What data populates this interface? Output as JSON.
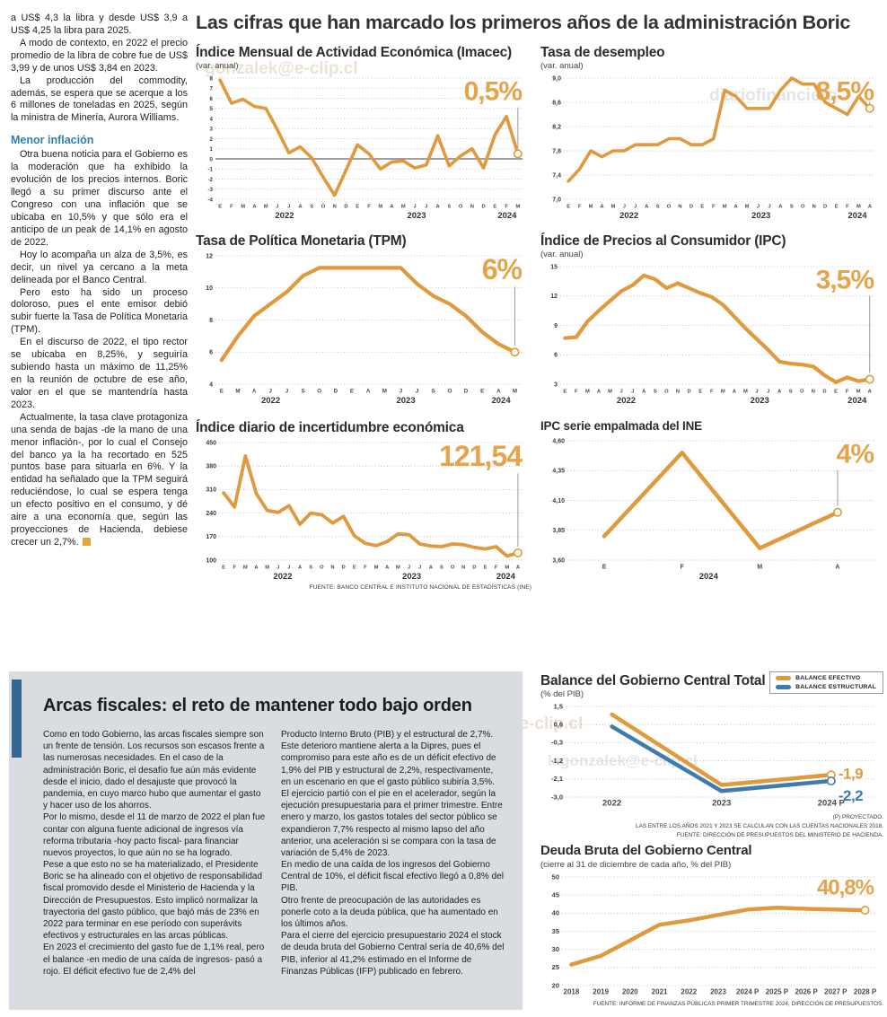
{
  "main_title": "Las cifras que han marcado los primeros años de la administración Boric",
  "watermarks": [
    "gonzalek@e-clip.cl",
    "diariofinanciero",
    "ero#@gonzalek@e-clip.cl",
    "lagonzalek@e-clip.cl"
  ],
  "left_column": {
    "paragraphs": [
      "a US$ 4,3 la libra y desde US$ 3,9 a US$ 4,25 la libra para 2025.",
      "A modo de contexto, en 2022 el precio promedio de la libra de cobre fue de US$ 3,99 y de unos US$ 3,84 en 2023.",
      "La producción del commodity, además, se espera que se acerque a los 6 millones de toneladas en 2025, según la ministra de Minería, Aurora Williams."
    ],
    "subhead": "Menor inflación",
    "paragraphs2": [
      "Otra buena noticia para el Gobierno es la moderación que ha exhibido la evolución de los precios internos. Boric llegó a su primer discurso ante el Congreso con una inflación que se ubicaba en 10,5% y que sólo era el anticipo de un peak de 14,1% en agosto de 2022.",
      "Hoy lo acompaña un alza de 3,5%, es decir, un nivel ya cercano a la meta delineada por el Banco Central.",
      "Pero esto ha sido un proceso doloroso, pues el ente emisor debió subir fuerte la Tasa de Política Monetaria (TPM).",
      "En el discurso de 2022, el tipo rector se ubicaba en 8,25%, y seguiría subiendo hasta un máximo de 11,25% en la reunión de octubre de ese año, valor en el que se mantendría hasta 2023.",
      "Actualmente, la tasa clave protagoniza una senda de bajas -de la mano de una menor inflación-, por lo cual el Consejo del banco ya la ha recortado en 525 puntos base para situarla en 6%. Y la entidad ha señalado que la TPM seguirá reduciéndose, lo cual se espera tenga un efecto positivo en el consumo, y dé aire a una economía que, según las proyecciones de Hacienda, debiese crecer un 2,7%."
    ]
  },
  "source_top": "FUENTE: BANCO CENTRAL E INSTITUTO NACIONAL DE ESTADÍSTICAS (INE)",
  "colors": {
    "orange": "#E0993C",
    "callout": "#E5A44C",
    "blue": "#3F7CAD",
    "panel": "#D9DCE0",
    "bar": "#336690"
  },
  "bottom": {
    "title": "Arcas fiscales: el reto de mantener todo bajo orden",
    "col1": [
      "Como en todo Gobierno, las arcas fiscales siempre son un frente de tensión. Los recursos son escasos frente a las numerosas necesidades. En el caso de la administración Boric, el desafío fue aún más evidente desde el inicio, dado el desajuste que provocó la pandemia, en cuyo marco hubo que aumentar el gasto y hacer uso de los ahorros.",
      "Por lo mismo, desde el 11 de marzo de 2022 el plan fue contar con alguna fuente adicional de ingresos vía reforma tributaria -hoy pacto fiscal- para financiar nuevos proyectos, lo que aún no se ha logrado.",
      "Pese a que esto no se ha materializado, el Presidente Boric se ha alineado con el objetivo de responsabilidad fiscal promovido desde el Ministerio de Hacienda y la Dirección de Presupuestos. Esto implicó normalizar la trayectoria del gasto público, que bajó más de 23% en 2022 para terminar en ese período con superávits efectivos y estructurales en las arcas públicas.",
      "En 2023 el crecimiento del gasto fue de 1,1% real, pero el balance -en medio de una caída de ingresos-  pasó a rojo. El déficit efectivo fue de 2,4% del"
    ],
    "col2": [
      "Producto Interno Bruto (PIB) y el estructural de 2,7%. Este deterioro mantiene alerta a la Dipres, pues el compromiso para este año es de un déficit efectivo de 1,9% del PIB y estructural de 2,2%, respectivamente, en un escenario en que el gasto público subiría 3,5%.",
      "El ejercicio partió con el pie en el acelerador, según la ejecución presupuestaria para el primer trimestre. Entre enero y marzo, los gastos totales del sector público se expandieron 7,7% respecto al mismo lapso del año anterior, una aceleración si se compara con la tasa de variación de 5,4% de 2023.",
      "En medio de una caída de los ingresos del Gobierno Central de 10%, el déficit fiscal efectivo llegó a 0,8% del PIB.",
      "Otro frente de preocupación de las autoridades es ponerle coto a la deuda pública, que ha aumentado en los últimos años.",
      "Para el cierre del ejercicio presupuestario 2024 el stock de deuda bruta del Gobierno Central sería de 40,6% del PIB, inferior al 41,2% estimado en el Informe de Finanzas Públicas (IFP) publicado en febrero."
    ]
  },
  "chart_data": [
    {
      "id": "imacec",
      "type": "line",
      "title": "Índice Mensual de Actividad Económica (Imacec)",
      "subtitle": "(var. anual)",
      "title_size": 15.5,
      "ylim": [
        -4,
        8
      ],
      "ml": 22,
      "y_size": 6.2,
      "y_ticks": [
        [
          "8",
          8
        ],
        [
          "7",
          7
        ],
        [
          "6",
          6
        ],
        [
          "5",
          5
        ],
        [
          "4",
          4
        ],
        [
          "3",
          3
        ],
        [
          "2",
          2
        ],
        [
          "1",
          1
        ],
        [
          "0",
          0
        ],
        [
          "-1",
          -1
        ],
        [
          "-2",
          -2
        ],
        [
          "-3",
          -3
        ],
        [
          "-4",
          -4
        ]
      ],
      "zero_line": 0,
      "x_labels": "EFMAMJJASONDEFMAMJJASONDEFM",
      "x_size": 5.8,
      "x_span": [
        0.015,
        0.985
      ],
      "years": [
        [
          "2022",
          0.225
        ],
        [
          "2023",
          0.655
        ],
        [
          "2024",
          0.95
        ]
      ],
      "series": [
        {
          "name": "Imacec",
          "color": "#E0993C",
          "width": 3.6,
          "end_circle": true,
          "values": [
            7.8,
            5.5,
            5.9,
            5.2,
            5.0,
            2.9,
            0.6,
            1.2,
            0.1,
            -1.8,
            -3.6,
            -1.1,
            1.4,
            0.5,
            -1.0,
            -0.3,
            -0.2,
            -0.9,
            -0.6,
            2.3,
            -0.7,
            0.3,
            1.0,
            -0.9,
            2.4,
            4.2,
            0.5
          ]
        }
      ],
      "callout": {
        "text": "0,5%",
        "size": 30,
        "line": true
      }
    },
    {
      "id": "desempleo",
      "type": "line",
      "title": "Tasa de desempleo",
      "subtitle": "(var. anual)",
      "title_size": 15.5,
      "ylim": [
        7.0,
        9.0
      ],
      "ml": 26,
      "y_size": 7,
      "y_ticks": [
        [
          "9,0",
          9.0
        ],
        [
          "8,6",
          8.6
        ],
        [
          "8,2",
          8.2
        ],
        [
          "7,8",
          7.8
        ],
        [
          "7,4",
          7.4
        ],
        [
          "7,0",
          7.0
        ]
      ],
      "x_labels": "EFMAMJJASONDEFMAMJJASONDEFMA",
      "x_size": 5.8,
      "x_span": [
        0.015,
        0.985
      ],
      "years": [
        [
          "2022",
          0.21
        ],
        [
          "2023",
          0.635
        ],
        [
          "2024",
          0.945
        ]
      ],
      "series": [
        {
          "name": "Tasa de desempleo",
          "color": "#E0993C",
          "width": 3.6,
          "end_circle": true,
          "values": [
            7.3,
            7.5,
            7.8,
            7.7,
            7.8,
            7.8,
            7.9,
            7.9,
            7.9,
            8.0,
            8.0,
            7.9,
            7.9,
            8.0,
            8.8,
            8.7,
            8.5,
            8.5,
            8.5,
            8.8,
            9.0,
            8.9,
            8.9,
            8.6,
            8.5,
            8.4,
            8.7,
            8.5
          ]
        }
      ],
      "callout": {
        "text": "8,5%",
        "size": 30,
        "line": true
      }
    },
    {
      "id": "tpm",
      "type": "line",
      "title": "Tasa de Política Monetaria (TPM)",
      "subtitle": null,
      "title_size": 15.5,
      "ylim": [
        4,
        12
      ],
      "ml": 22,
      "y_size": 7,
      "y_ticks": [
        [
          "12",
          12
        ],
        [
          "10",
          10
        ],
        [
          "8",
          8
        ],
        [
          "6",
          6
        ],
        [
          "4",
          4
        ]
      ],
      "x_labels": "EMAJJSODEAMJJSODEAM",
      "x_size": 6.2,
      "x_span": [
        0.02,
        0.975
      ],
      "years": [
        [
          "2022",
          0.18
        ],
        [
          "2023",
          0.62
        ],
        [
          "2024",
          0.93
        ]
      ],
      "series": [
        {
          "name": "TPM",
          "color": "#E0993C",
          "width": 4.2,
          "end_circle": true,
          "values": [
            5.5,
            7.0,
            8.25,
            9.0,
            9.75,
            10.75,
            11.25,
            11.25,
            11.25,
            11.25,
            11.25,
            11.25,
            10.25,
            9.5,
            9.0,
            8.25,
            7.25,
            6.5,
            6.0
          ]
        }
      ],
      "callout": {
        "text": "6%",
        "size": 32,
        "line": true
      }
    },
    {
      "id": "ipc",
      "type": "line",
      "title": "Índice de Precios al Consumidor (IPC)",
      "subtitle": "(var. anual)",
      "title_size": 15.5,
      "ylim": [
        3,
        15
      ],
      "ml": 22,
      "y_size": 7,
      "y_ticks": [
        [
          "15",
          15
        ],
        [
          "12",
          12
        ],
        [
          "9",
          9
        ],
        [
          "6",
          6
        ],
        [
          "3",
          3
        ]
      ],
      "x_labels": "EFMAMJJASONDEFMAMJJASONDEFMA",
      "x_size": 5.8,
      "x_span": [
        0.015,
        0.985
      ],
      "years": [
        [
          "2022",
          0.21
        ],
        [
          "2023",
          0.635
        ],
        [
          "2024",
          0.945
        ]
      ],
      "series": [
        {
          "name": "IPC",
          "color": "#E0993C",
          "width": 4.2,
          "end_circle": true,
          "values": [
            7.7,
            7.8,
            9.4,
            10.5,
            11.5,
            12.5,
            13.1,
            14.1,
            13.7,
            12.8,
            13.3,
            12.8,
            12.3,
            11.9,
            11.1,
            9.9,
            8.7,
            7.6,
            6.5,
            5.3,
            5.1,
            5.0,
            4.8,
            3.9,
            3.2,
            3.7,
            3.3,
            3.5
          ]
        }
      ],
      "callout": {
        "text": "3,5%",
        "size": 30,
        "line": true
      }
    },
    {
      "id": "incertidumbre",
      "type": "line",
      "title": "Índice diario de incertidumbre económica",
      "subtitle": null,
      "title_size": 15.5,
      "ylim": [
        100,
        450
      ],
      "ml": 26,
      "y_size": 7,
      "y_ticks": [
        [
          "450",
          450
        ],
        [
          "380",
          380
        ],
        [
          "310",
          310
        ],
        [
          "240",
          240
        ],
        [
          "170",
          170
        ],
        [
          "100",
          100
        ]
      ],
      "x_labels": "EFMAMJJASONDEFMAMJJASONDEFMA",
      "x_size": 5.8,
      "x_span": [
        0.015,
        0.985
      ],
      "years": [
        [
          "2022",
          0.21
        ],
        [
          "2023",
          0.635
        ],
        [
          "2024",
          0.945
        ]
      ],
      "series": [
        {
          "name": "Incertidumbre económica",
          "color": "#E0993C",
          "width": 3.8,
          "end_circle": true,
          "values": [
            300,
            258,
            410,
            298,
            248,
            242,
            262,
            207,
            240,
            235,
            210,
            230,
            172,
            150,
            143,
            155,
            178,
            176,
            148,
            142,
            140,
            148,
            146,
            138,
            133,
            140,
            112,
            121.54
          ]
        }
      ],
      "callout": {
        "text": "121,54",
        "size": 32,
        "line": true
      }
    },
    {
      "id": "ipc-empalmado",
      "type": "line",
      "title": "IPC serie empalmada del INE",
      "subtitle": null,
      "title_size": 13.5,
      "ylim": [
        3.6,
        4.6
      ],
      "ml": 30,
      "y_size": 7,
      "y_ticks": [
        [
          "4,60",
          4.6
        ],
        [
          "4,35",
          4.35
        ],
        [
          "4,10",
          4.1
        ],
        [
          "3,85",
          3.85
        ],
        [
          "3,60",
          3.6
        ]
      ],
      "x_labels": [
        "E",
        "F",
        "M",
        "A"
      ],
      "x_size": 7,
      "x_span": [
        0.12,
        0.88
      ],
      "years": [
        [
          "2024",
          0.46
        ]
      ],
      "series": [
        {
          "name": "IPC serie empalmada",
          "color": "#E0993C",
          "width": 4.5,
          "end_circle": true,
          "values": [
            3.8,
            4.5,
            3.7,
            4.0
          ]
        }
      ],
      "callout": {
        "text": "4%",
        "size": 30,
        "line": true
      }
    },
    {
      "id": "balance",
      "type": "line",
      "title": "Balance del Gobierno Central Total",
      "subtitle": "(% del PIB)",
      "title_size": 15.5,
      "ylim": [
        -3.0,
        1.5
      ],
      "ml": 28,
      "y_size": 7.5,
      "y_ticks": [
        [
          "1,5",
          1.5
        ],
        [
          "0,6",
          0.6
        ],
        [
          "-0,3",
          -0.3
        ],
        [
          "-1,2",
          -1.2
        ],
        [
          "-2,1",
          -2.1
        ],
        [
          "-3,0",
          -3.0
        ]
      ],
      "x_labels": [
        "2022",
        "2023",
        "2024 P"
      ],
      "x_size": 9.5,
      "x_span": [
        0.15,
        0.86
      ],
      "legend": {
        "items": [
          [
            "BALANCE EFECTIVO",
            "#E0993C"
          ],
          [
            "BALANCE ESTRUCTURAL",
            "#3F7CAD"
          ]
        ]
      },
      "series": [
        {
          "name": "Balance efectivo",
          "color": "#E0993C",
          "width": 4.5,
          "end_circle": true,
          "end_label": "-1,9",
          "end_label_dy": 0,
          "values": [
            1.1,
            -2.4,
            -1.9
          ]
        },
        {
          "name": "Balance estructural",
          "color": "#3F7CAD",
          "width": 4.5,
          "end_circle": true,
          "end_label": "-2,2",
          "end_label_dy": 18,
          "values": [
            0.5,
            -2.7,
            -2.2
          ]
        }
      ],
      "notes": [
        "(P) PROYECTADO.",
        "LAS ENTRE LOS AÑOS 2021 Y 2023 SE CALCULAN  CON LAS CUENTAS NACIONALES 2018.",
        "FUENTE: DIRECCIÓN DE PRESUPUESTOS DEL MINISTERIO DE HACIENDA."
      ]
    },
    {
      "id": "deuda",
      "type": "line",
      "title": "Deuda Bruta del Gobierno Central",
      "subtitle": "(cierre al 31 de diciembre de cada año, % del PIB)",
      "title_size": 15,
      "ylim": [
        20,
        50
      ],
      "ml": 24,
      "y_size": 7.5,
      "y_ticks": [
        [
          "50",
          50
        ],
        [
          "45",
          45
        ],
        [
          "40",
          40
        ],
        [
          "35",
          35
        ],
        [
          "30",
          30
        ],
        [
          "25",
          25
        ],
        [
          "20",
          20
        ]
      ],
      "x_labels": [
        "2018",
        "2019",
        "2020",
        "2021",
        "2022",
        "2023",
        "2024 P",
        "2025 P",
        "2026 P",
        "2027 P",
        "2028 P"
      ],
      "x_size": 8,
      "x_span": [
        0.03,
        0.97
      ],
      "series": [
        {
          "name": "Deuda bruta",
          "color": "#E0993C",
          "width": 4.5,
          "end_circle": true,
          "values": [
            25.8,
            28.2,
            32.5,
            36.8,
            38.0,
            39.5,
            41.0,
            41.5,
            41.2,
            41.0,
            40.8
          ]
        }
      ],
      "callout": {
        "text": "40,8%",
        "size": 24,
        "line": false
      },
      "source": "FUENTE: INFORME DE FINANZAS PÚBLICAS PRIMER TRIMESTRE 2024, DIRECCIÓN DE PRESUPUESTOS."
    }
  ]
}
